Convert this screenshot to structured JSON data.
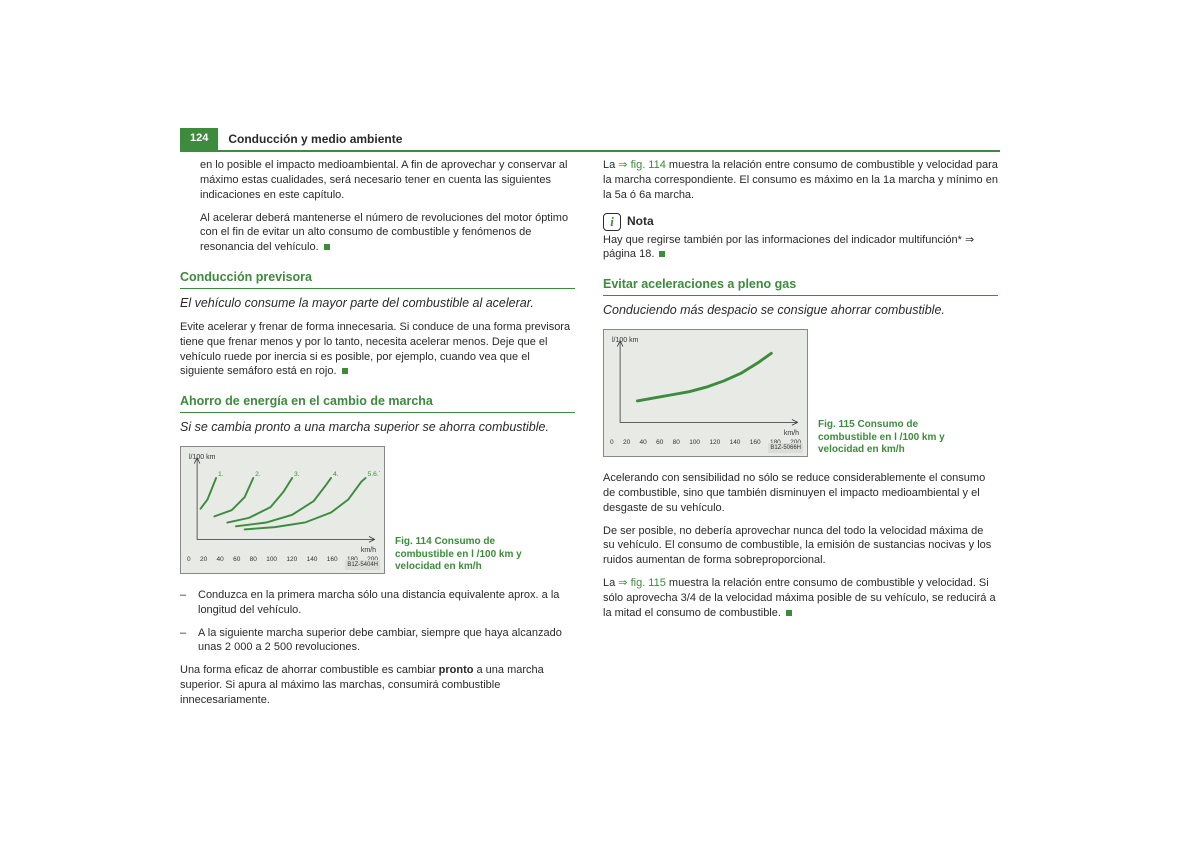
{
  "header": {
    "page_num": "124",
    "title": "Conducción y medio ambiente"
  },
  "left": {
    "intro_p1": "en lo posible el impacto medioambiental. A fin de aprovechar y conservar al máximo estas cualidades, será necesario tener en cuenta las siguientes indicaciones en este capítulo.",
    "intro_p2": "Al acelerar deberá mantenerse el número de revoluciones del motor óptimo con el fin de evitar un alto consumo de combustible y fenómenos de resonancia del vehículo.",
    "sec1_title": "Conducción previsora",
    "sec1_sub": "El vehículo consume la mayor parte del combustible al acelerar.",
    "sec1_p": "Evite acelerar y frenar de forma innecesaria. Si conduce de una forma previsora tiene que frenar menos y por lo tanto, necesita acelerar menos. Deje que el vehículo ruede por inercia si es posible, por ejemplo, cuando vea que el siguiente semáforo está en rojo.",
    "sec2_title": "Ahorro de energía en el cambio de marcha",
    "sec2_sub": "Si se cambia pronto a una marcha superior se ahorra combustible.",
    "fig114_caption": "Fig. 114   Consumo de combustible en l /100 km y velocidad en km/h",
    "li1": "Conduzca en la primera marcha sólo una distancia equivalente aprox. a la longitud del vehículo.",
    "li2": "A la siguiente marcha superior debe cambiar, siempre que haya alcanzado unas 2 000 a 2 500 revoluciones.",
    "sec2_p1a": "Una forma eficaz de ahorrar combustible es cambiar ",
    "sec2_p1b": "pronto",
    "sec2_p1c": " a una marcha superior. Si apura al máximo las marchas, consumirá combustible innecesariamente."
  },
  "right": {
    "top_p1_a": "La ",
    "top_p1_ref": "⇒ fig. 114",
    "top_p1_b": " muestra la relación entre consumo de combustible y velocidad para la marcha correspondiente. El consumo es máximo en la 1a marcha y mínimo en la 5a ó 6a marcha.",
    "nota_label": "Nota",
    "nota_p": "Hay que regirse también por las informaciones del indicador multifunción* ⇒ página 18.",
    "sec3_title": "Evitar aceleraciones a pleno gas",
    "sec3_sub": "Conduciendo más despacio se consigue ahorrar combustible.",
    "fig115_caption": "Fig. 115   Consumo de combustible en l /100 km y velocidad en km/h",
    "sec3_p1": "Acelerando con sensibilidad no sólo se reduce considerablemente el consumo de combustible, sino que también disminuyen el impacto medioambiental y el desgaste de su vehículo.",
    "sec3_p2": "De ser posible, no debería aprovechar nunca del todo la velocidad máxima de su vehículo. El consumo de combustible, la emisión de sustancias nocivas y los ruidos aumentan de forma sobreproporcional.",
    "sec3_p3a": "La ",
    "sec3_p3ref": "⇒ fig. 115",
    "sec3_p3b": " muestra la relación entre consumo de combustible y velocidad. Si sólo aprovecha 3/4 de la velocidad máxima posible de su vehículo, se reducirá a la mitad el consumo de combustible."
  },
  "chart114": {
    "type": "line",
    "ylabel": "l/100 km",
    "xlabel": "km/h",
    "code": "B1Z-5404H",
    "xticks": [
      "0",
      "20",
      "40",
      "60",
      "80",
      "100",
      "120",
      "140",
      "160",
      "180",
      "200"
    ],
    "background_color": "#e8eae6",
    "border_color": "#888888",
    "line_color": "#3d8b3d",
    "line_width": 2,
    "xlim": [
      0,
      200
    ],
    "ylim": [
      0,
      100
    ],
    "series": [
      {
        "label": "1.",
        "label_color": "#3d8b3d",
        "points": [
          [
            4,
            40
          ],
          [
            12,
            52
          ],
          [
            22,
            80
          ]
        ]
      },
      {
        "label": "2.",
        "label_color": "#3d8b3d",
        "points": [
          [
            20,
            30
          ],
          [
            40,
            38
          ],
          [
            55,
            55
          ],
          [
            65,
            80
          ]
        ]
      },
      {
        "label": "3.",
        "label_color": "#3d8b3d",
        "points": [
          [
            35,
            22
          ],
          [
            60,
            28
          ],
          [
            85,
            42
          ],
          [
            100,
            62
          ],
          [
            110,
            80
          ]
        ]
      },
      {
        "label": "4.",
        "label_color": "#3d8b3d",
        "points": [
          [
            45,
            17
          ],
          [
            80,
            22
          ],
          [
            110,
            32
          ],
          [
            135,
            50
          ],
          [
            150,
            72
          ],
          [
            155,
            80
          ]
        ]
      },
      {
        "label": "5.6.7.",
        "label_color": "#3d8b3d",
        "points": [
          [
            55,
            13
          ],
          [
            90,
            16
          ],
          [
            125,
            22
          ],
          [
            155,
            35
          ],
          [
            175,
            52
          ],
          [
            190,
            75
          ],
          [
            195,
            80
          ]
        ]
      }
    ]
  },
  "chart115": {
    "type": "line",
    "ylabel": "l/100 km",
    "xlabel": "km/h",
    "code": "B1Z-5066H",
    "xticks": [
      "0",
      "20",
      "40",
      "60",
      "80",
      "100",
      "120",
      "140",
      "160",
      "180",
      "200"
    ],
    "background_color": "#e8eae6",
    "border_color": "#888888",
    "line_color": "#3d8b3d",
    "line_width": 3,
    "xlim": [
      0,
      200
    ],
    "ylim": [
      0,
      100
    ],
    "series": [
      {
        "points": [
          [
            20,
            28
          ],
          [
            40,
            32
          ],
          [
            60,
            36
          ],
          [
            80,
            40
          ],
          [
            100,
            46
          ],
          [
            120,
            54
          ],
          [
            140,
            64
          ],
          [
            160,
            78
          ],
          [
            175,
            90
          ]
        ]
      }
    ]
  }
}
